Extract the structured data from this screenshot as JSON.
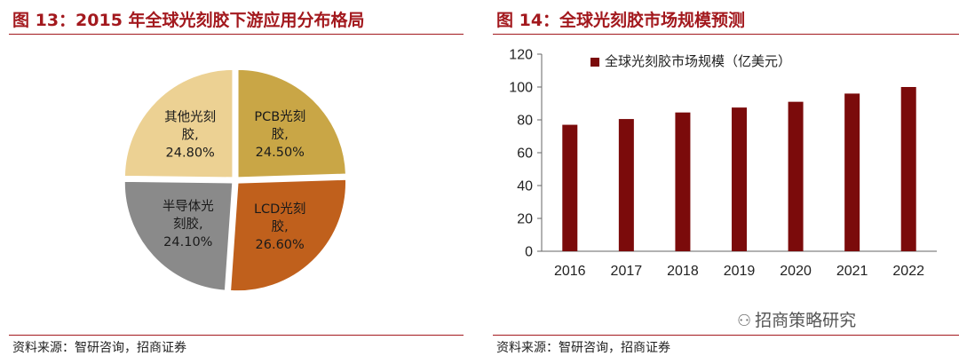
{
  "left_panel": {
    "title": "图 13：2015 年全球光刻胶下游应用分布格局",
    "source": "资料来源：智研咨询，招商证券"
  },
  "right_panel": {
    "title": "图 14：全球光刻胶市场规模预测",
    "source": "资料来源：智研咨询，招商证券"
  },
  "watermark": {
    "text": "招商策略研究",
    "icon": "wechat-icon"
  },
  "chart_data": [
    {
      "type": "pie",
      "title": "",
      "slices": [
        {
          "lines": [
            "PCB光刻",
            "胶,",
            "24.50%"
          ],
          "value": 24.5,
          "color": "#c9a646"
        },
        {
          "lines": [
            "LCD光刻",
            "胶,",
            "26.60%"
          ],
          "value": 26.6,
          "color": "#c0601c"
        },
        {
          "lines": [
            "半导体光",
            "刻胶,",
            "24.10%"
          ],
          "value": 24.1,
          "color": "#8a8a8a"
        },
        {
          "lines": [
            "其他光刻",
            "胶,",
            "24.80%"
          ],
          "value": 24.8,
          "color": "#ecd193"
        }
      ]
    },
    {
      "type": "bar",
      "title": "",
      "categories": [
        "2016",
        "2017",
        "2018",
        "2019",
        "2020",
        "2021",
        "2022"
      ],
      "series": [
        {
          "name": "全球光刻胶市场规模（亿美元）",
          "values": [
            77,
            80.5,
            84.5,
            87.5,
            91,
            96,
            100
          ],
          "color": "#7b0b0b"
        }
      ],
      "ylim": [
        0,
        120
      ],
      "yticks": [
        "0",
        "20",
        "40",
        "60",
        "80",
        "100",
        "120"
      ],
      "grid": false,
      "legend": "top"
    }
  ]
}
